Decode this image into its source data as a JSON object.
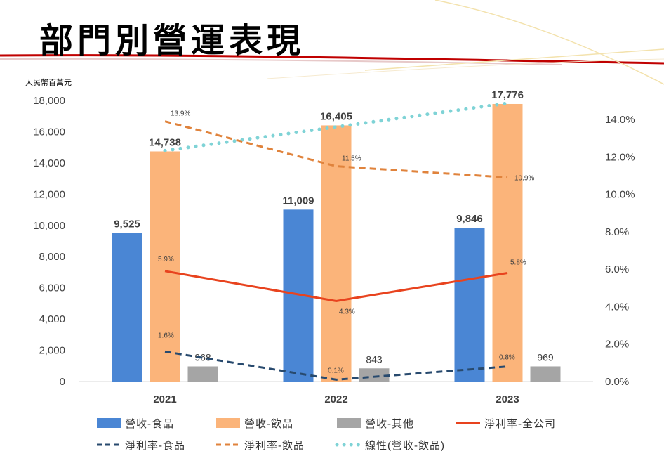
{
  "slide": {
    "title": "部門別營運表現",
    "unit_label": "人民幣百萬元",
    "accent_color": "#d62828"
  },
  "chart_data": {
    "type": "bar",
    "categories": [
      "2021",
      "2022",
      "2023"
    ],
    "left_axis": {
      "ylim": [
        0,
        18000
      ],
      "ticks": [
        "0",
        "2,000",
        "4,000",
        "6,000",
        "8,000",
        "10,000",
        "12,000",
        "14,000",
        "16,000",
        "18,000"
      ]
    },
    "right_axis": {
      "ylim": [
        0,
        0.15
      ],
      "ticks": [
        "0.0%",
        "2.0%",
        "4.0%",
        "6.0%",
        "8.0%",
        "10.0%",
        "12.0%",
        "14.0%"
      ]
    },
    "bar_series": [
      {
        "name": "營收-食品",
        "color": "#4a86d4",
        "values": [
          9525,
          11009,
          9846
        ],
        "labels": [
          "9,525",
          "11,009",
          "9,846"
        ]
      },
      {
        "name": "營收-飲品",
        "color": "#fbb47a",
        "values": [
          14738,
          16405,
          17776
        ],
        "labels": [
          "14,738",
          "16,405",
          "17,776"
        ]
      },
      {
        "name": "營收-其他",
        "color": "#a5a5a5",
        "values": [
          968,
          843,
          969
        ],
        "labels": [
          "968",
          "843",
          "969"
        ]
      }
    ],
    "line_series": [
      {
        "name": "淨利率-全公司",
        "color": "#e8431e",
        "style": "solid",
        "values": [
          0.059,
          0.043,
          0.058
        ],
        "labels": [
          "5.9%",
          "4.3%",
          "5.8%"
        ]
      },
      {
        "name": "淨利率-食品",
        "color": "#284a6e",
        "style": "dashed",
        "values": [
          0.016,
          0.001,
          0.008
        ],
        "labels": [
          "1.6%",
          "0.1%",
          "0.8%"
        ]
      },
      {
        "name": "淨利率-飲品",
        "color": "#e0833c",
        "style": "dashed",
        "values": [
          0.139,
          0.115,
          0.109
        ],
        "labels": [
          "13.9%",
          "11.5%",
          "10.9%"
        ]
      }
    ],
    "trendline": {
      "name": "線性(營收-飲品)",
      "color": "#7fd3d6",
      "style": "dotted",
      "of_series": "營收-飲品"
    },
    "legend_position": "bottom",
    "grid": false
  }
}
